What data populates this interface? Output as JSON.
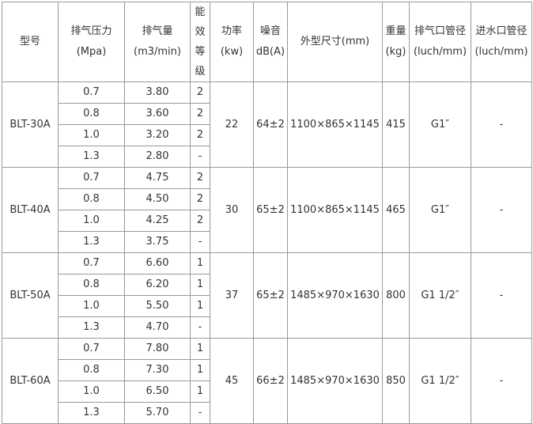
{
  "headers": [
    {
      "line1": "型号",
      "line2": ""
    },
    {
      "line1": "排气压力",
      "line2": "(Mpa)"
    },
    {
      "line1": "排气量",
      "line2": "(m3/min)"
    },
    {
      "line1": "能效等级",
      "chars": [
        "能",
        "效",
        "等",
        "级"
      ]
    },
    {
      "line1": "功率",
      "line2": "(kw)"
    },
    {
      "line1": "噪音",
      "line2": "dB(A)"
    },
    {
      "line1": "外型尺寸(mm)",
      "line2": ""
    },
    {
      "line1": "重量",
      "line2": "(kg)"
    },
    {
      "line1": "排气口管径",
      "line2": "(luch/mm)"
    },
    {
      "line1": "进水口管径",
      "line2": "(luch/mm)"
    }
  ],
  "models": [
    {
      "model": "BLT-30A",
      "power": "22",
      "noise": "64±2",
      "size": "1100×865×1145",
      "weight": "415",
      "outlet": "G1″",
      "inlet": "-",
      "rows": [
        [
          "0.7",
          "3.80",
          "2"
        ],
        [
          "0.8",
          "3.60",
          "2"
        ],
        [
          "1.0",
          "3.20",
          "2"
        ],
        [
          "1.3",
          "2.80",
          "-"
        ]
      ]
    },
    {
      "model": "BLT-40A",
      "power": "30",
      "noise": "65±2",
      "size": "1100×865×1145",
      "weight": "465",
      "outlet": "G1″",
      "inlet": "-",
      "rows": [
        [
          "0.7",
          "4.75",
          "2"
        ],
        [
          "0.8",
          "4.50",
          "2"
        ],
        [
          "1.0",
          "4.25",
          "2"
        ],
        [
          "1.3",
          "3.75",
          "-"
        ]
      ]
    },
    {
      "model": "BLT-50A",
      "power": "37",
      "noise": "65±2",
      "size": "1485×970×1630",
      "weight": "800",
      "outlet": "G1 1/2″",
      "inlet": "-",
      "rows": [
        [
          "0.7",
          "6.60",
          "1"
        ],
        [
          "0.8",
          "6.20",
          "1"
        ],
        [
          "1.0",
          "5.50",
          "1"
        ],
        [
          "1.3",
          "4.70",
          "-"
        ]
      ]
    },
    {
      "model": "BLT-60A",
      "power": "45",
      "noise": "66±2",
      "size": "1485×970×1630",
      "weight": "850",
      "outlet": "G1 1/2″",
      "inlet": "-",
      "rows": [
        [
          "0.7",
          "7.80",
          "1"
        ],
        [
          "0.8",
          "7.30",
          "1"
        ],
        [
          "1.0",
          "6.50",
          "1"
        ],
        [
          "1.3",
          "5.70",
          "-"
        ]
      ]
    }
  ]
}
